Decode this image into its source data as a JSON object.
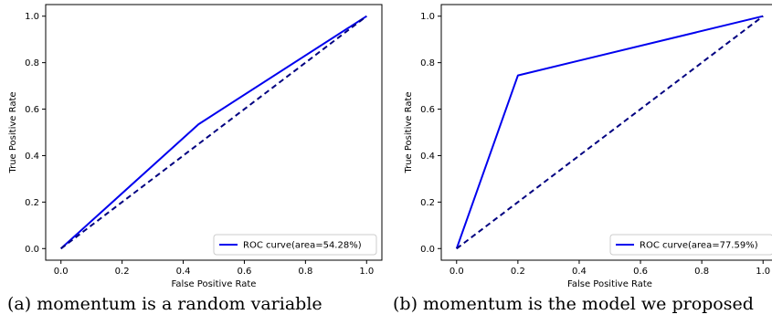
{
  "chart_data": [
    {
      "type": "line",
      "xlabel": "False Positive Rate",
      "ylabel": "True Positive Rate",
      "xlim": [
        -0.05,
        1.05
      ],
      "ylim": [
        -0.05,
        1.05
      ],
      "xticks": [
        "0.0",
        "0.2",
        "0.4",
        "0.6",
        "0.8",
        "1.0"
      ],
      "yticks": [
        "0.0",
        "0.2",
        "0.4",
        "0.6",
        "0.8",
        "1.0"
      ],
      "grid": false,
      "legend_position": "lower-right",
      "series": [
        {
          "name": "ROC curve(area=54.28%)",
          "x": [
            0.0,
            0.45,
            1.0
          ],
          "y": [
            0.0,
            0.535,
            1.0
          ],
          "color": "#0000ee",
          "style": "solid"
        },
        {
          "x": [
            0.0,
            1.0
          ],
          "y": [
            0.0,
            1.0
          ],
          "color": "#000080",
          "style": "dashed"
        }
      ]
    },
    {
      "type": "line",
      "xlabel": "False Positive Rate",
      "ylabel": "True Positive Rate",
      "xlim": [
        -0.05,
        1.05
      ],
      "ylim": [
        -0.05,
        1.05
      ],
      "xticks": [
        "0.0",
        "0.2",
        "0.4",
        "0.6",
        "0.8",
        "1.0"
      ],
      "yticks": [
        "0.0",
        "0.2",
        "0.4",
        "0.6",
        "0.8",
        "1.0"
      ],
      "grid": false,
      "legend_position": "lower-right",
      "series": [
        {
          "name": "ROC curve(area=77.59%)",
          "x": [
            0.0,
            0.2,
            1.0
          ],
          "y": [
            0.0,
            0.745,
            1.0
          ],
          "color": "#0000ee",
          "style": "solid"
        },
        {
          "x": [
            0.0,
            1.0
          ],
          "y": [
            0.0,
            1.0
          ],
          "color": "#000080",
          "style": "dashed"
        }
      ]
    }
  ],
  "captions": {
    "a": "(a) momentum is a random variable",
    "b": "(b) momentum is the model we proposed"
  }
}
